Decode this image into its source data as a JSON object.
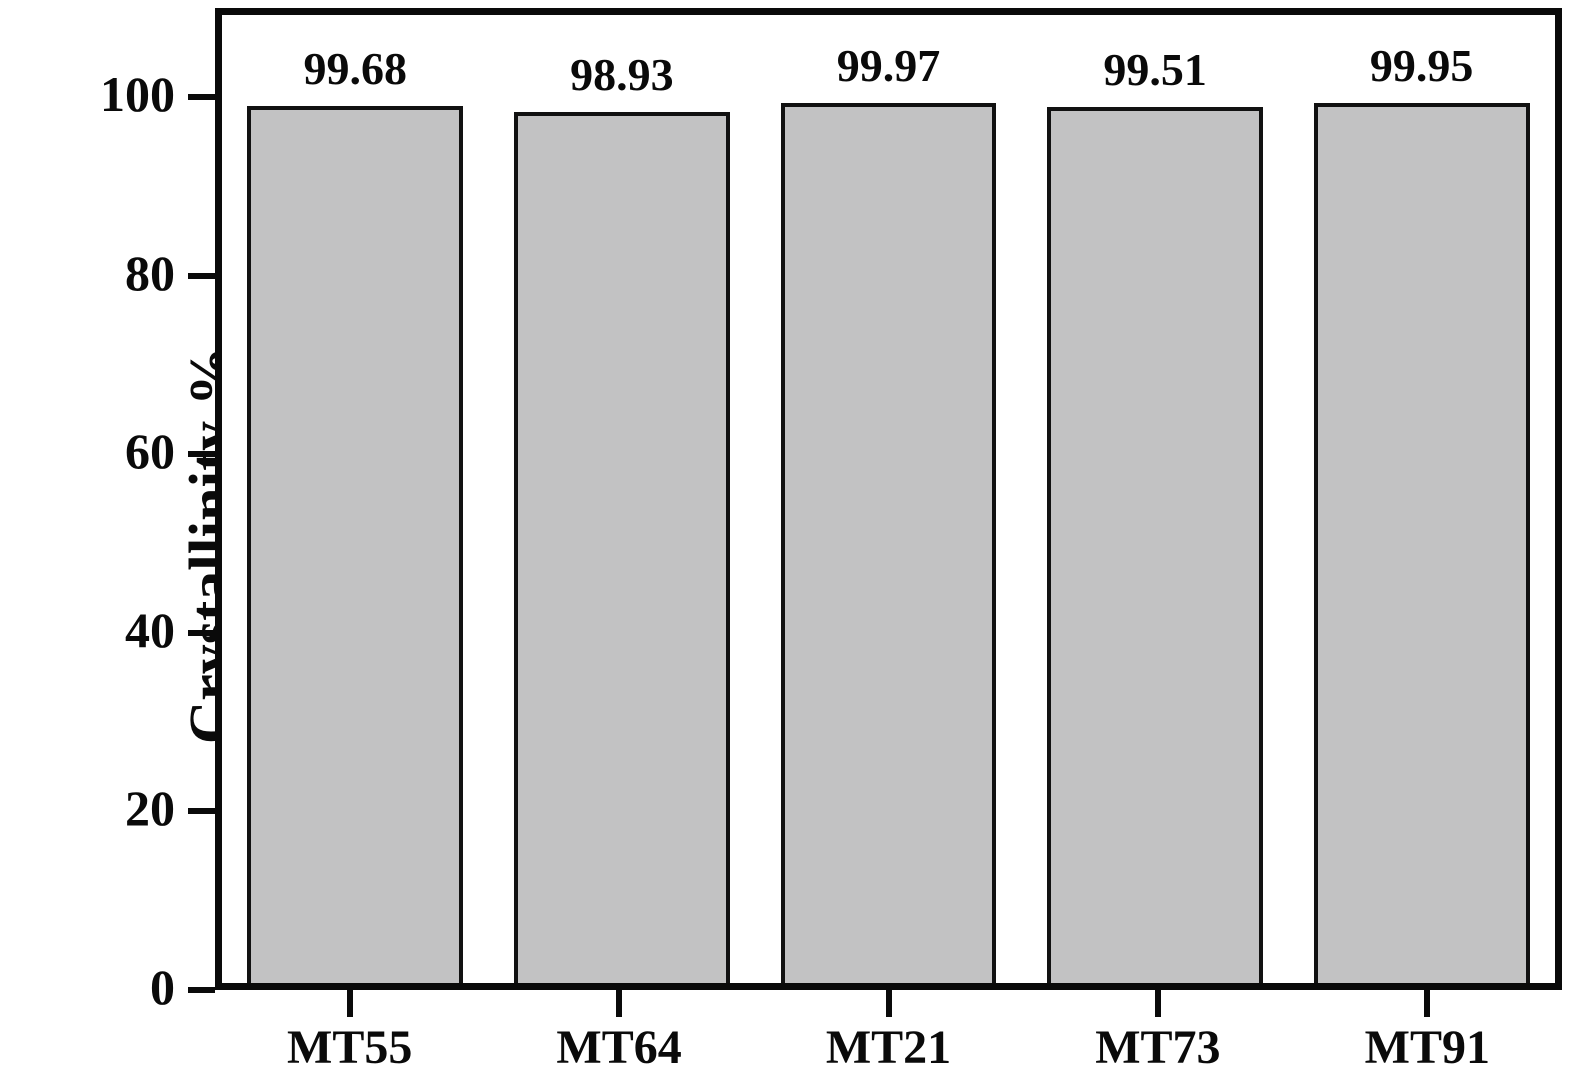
{
  "chart_data": {
    "type": "bar",
    "categories": [
      "MT55",
      "MT64",
      "MT21",
      "MT73",
      "MT91"
    ],
    "values": [
      99.68,
      98.93,
      99.97,
      99.51,
      99.95
    ],
    "value_labels": [
      "99.68",
      "98.93",
      "99.97",
      "99.51",
      "99.95"
    ],
    "title": "",
    "xlabel": "",
    "ylabel": "Crystallinity %",
    "ylim": [
      0,
      110
    ],
    "yticks": [
      0,
      20,
      40,
      60,
      80,
      100
    ],
    "ytick_labels": [
      "0",
      "20",
      "40",
      "60",
      "80",
      "100"
    ],
    "grid": false,
    "legend": false,
    "bar_fill_color": "#c2c2c3",
    "bar_border_color": "#111111",
    "axis_color": "#0a0a0a",
    "background_color": "#ffffff"
  }
}
